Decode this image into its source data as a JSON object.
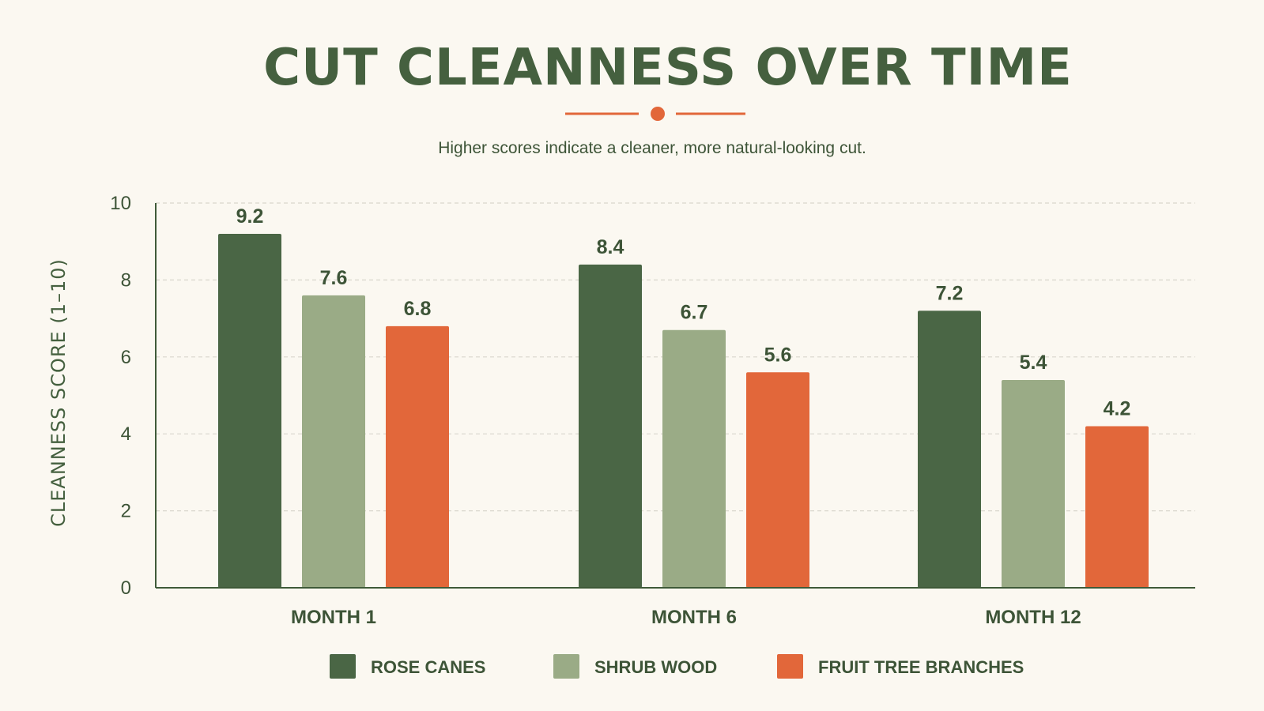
{
  "colors": {
    "background": "#fbf8f1",
    "title": "#45603f",
    "accent": "#e2673a",
    "text": "#3d5437",
    "axis": "#3f5a39",
    "grid": "#d9d6cd"
  },
  "chart_data": {
    "type": "bar",
    "title": "CUT CLEANNESS OVER TIME",
    "subtitle": "Higher scores indicate a cleaner, more natural-looking cut.",
    "xlabel": "",
    "ylabel": "CLEANNESS SCORE (1–10)",
    "ylim": [
      0,
      10
    ],
    "yticks": [
      0,
      2,
      4,
      6,
      8,
      10
    ],
    "grid": true,
    "legend_position": "bottom",
    "categories": [
      "MONTH 1",
      "MONTH 6",
      "MONTH 12"
    ],
    "series": [
      {
        "name": "ROSE CANES",
        "color": "#4a6645",
        "values": [
          9.2,
          8.4,
          7.2
        ]
      },
      {
        "name": "SHRUB WOOD",
        "color": "#9aab86",
        "values": [
          7.6,
          6.7,
          5.4
        ]
      },
      {
        "name": "FRUIT TREE BRANCHES",
        "color": "#e2673a",
        "values": [
          6.8,
          5.6,
          4.2
        ]
      }
    ]
  }
}
